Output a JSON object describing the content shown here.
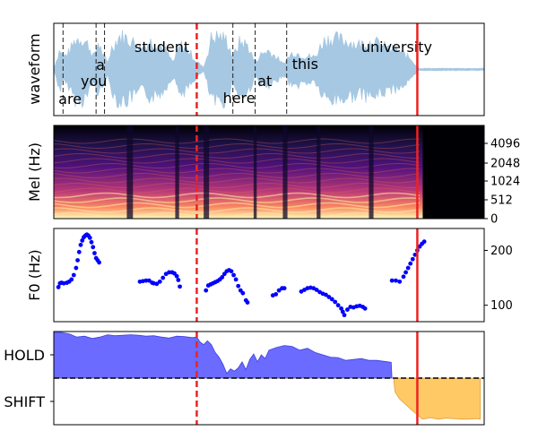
{
  "chart_data": [
    {
      "type": "area",
      "panel": "waveform",
      "ylabel": "waveform",
      "words": [
        {
          "text": "are",
          "t": 0.06
        },
        {
          "text": "you",
          "t": 0.35
        },
        {
          "text": "a",
          "t": 0.55
        },
        {
          "text": "student",
          "t": 1.05
        },
        {
          "text": "here",
          "t": 2.2
        },
        {
          "text": "at",
          "t": 2.65
        },
        {
          "text": "this",
          "t": 3.1
        },
        {
          "text": "university",
          "t": 4.0
        }
      ],
      "word_boundaries": [
        0.12,
        0.55,
        0.66,
        2.33,
        2.62,
        3.03
      ],
      "envelope": [
        [
          0.0,
          0.05
        ],
        [
          0.04,
          0.3
        ],
        [
          0.08,
          0.6
        ],
        [
          0.12,
          0.35
        ],
        [
          0.2,
          0.5
        ],
        [
          0.28,
          0.85
        ],
        [
          0.36,
          0.9
        ],
        [
          0.45,
          0.7
        ],
        [
          0.52,
          0.35
        ],
        [
          0.58,
          0.8
        ],
        [
          0.64,
          0.4
        ],
        [
          0.7,
          0.2
        ],
        [
          0.75,
          0.6
        ],
        [
          0.85,
          0.95
        ],
        [
          0.95,
          0.9
        ],
        [
          1.05,
          0.75
        ],
        [
          1.15,
          0.6
        ],
        [
          1.25,
          0.8
        ],
        [
          1.35,
          0.75
        ],
        [
          1.45,
          0.55
        ],
        [
          1.55,
          0.2
        ],
        [
          1.65,
          0.7
        ],
        [
          1.75,
          0.55
        ],
        [
          1.85,
          0.25
        ],
        [
          1.95,
          0.05
        ],
        [
          2.0,
          0.45
        ],
        [
          2.05,
          0.9
        ],
        [
          2.15,
          0.95
        ],
        [
          2.25,
          0.85
        ],
        [
          2.33,
          0.35
        ],
        [
          2.42,
          0.8
        ],
        [
          2.52,
          0.7
        ],
        [
          2.62,
          0.2
        ],
        [
          2.68,
          0.4
        ],
        [
          2.78,
          0.55
        ],
        [
          2.9,
          0.35
        ],
        [
          2.98,
          0.15
        ],
        [
          3.03,
          0.3
        ],
        [
          3.12,
          0.5
        ],
        [
          3.25,
          0.4
        ],
        [
          3.4,
          0.35
        ],
        [
          3.5,
          0.8
        ],
        [
          3.6,
          0.9
        ],
        [
          3.72,
          0.85
        ],
        [
          3.85,
          0.8
        ],
        [
          3.95,
          0.7
        ],
        [
          4.05,
          0.75
        ],
        [
          4.15,
          0.8
        ],
        [
          4.25,
          0.7
        ],
        [
          4.35,
          0.6
        ],
        [
          4.45,
          0.55
        ],
        [
          4.55,
          0.45
        ],
        [
          4.65,
          0.3
        ],
        [
          4.72,
          0.1
        ],
        [
          4.75,
          0.03
        ],
        [
          5.6,
          0.03
        ]
      ],
      "xlim": [
        0,
        5.6
      ],
      "markers": {
        "dashed_red_t": 1.86,
        "solid_red_t": 4.73
      },
      "color": "#a6c8e2"
    },
    {
      "type": "heatmap",
      "panel": "mel_spectrogram",
      "ylabel": "Mel (Hz)",
      "yticks": [
        "0",
        "512",
        "1024",
        "2048",
        "4096"
      ],
      "data_end_t": 4.8,
      "xlim": [
        0,
        5.6
      ],
      "colormap": "magma",
      "markers": {
        "dashed_red_t": 1.86,
        "solid_red_t": 4.73
      }
    },
    {
      "type": "scatter",
      "panel": "f0",
      "ylabel": "F0 (Hz)",
      "yticks": [
        100,
        200
      ],
      "ylim": [
        70,
        240
      ],
      "xlim": [
        0,
        5.6
      ],
      "color": "#0000ff",
      "points": [
        [
          0.06,
          133
        ],
        [
          0.08,
          140
        ],
        [
          0.1,
          141
        ],
        [
          0.13,
          140
        ],
        [
          0.17,
          141
        ],
        [
          0.2,
          143
        ],
        [
          0.23,
          147
        ],
        [
          0.26,
          155
        ],
        [
          0.29,
          168
        ],
        [
          0.31,
          182
        ],
        [
          0.33,
          197
        ],
        [
          0.35,
          210
        ],
        [
          0.37,
          218
        ],
        [
          0.39,
          224
        ],
        [
          0.41,
          227
        ],
        [
          0.43,
          229
        ],
        [
          0.45,
          227
        ],
        [
          0.47,
          223
        ],
        [
          0.49,
          215
        ],
        [
          0.51,
          206
        ],
        [
          0.53,
          195
        ],
        [
          0.55,
          186
        ],
        [
          0.57,
          182
        ],
        [
          0.59,
          178
        ],
        [
          1.12,
          143
        ],
        [
          1.16,
          144
        ],
        [
          1.2,
          145
        ],
        [
          1.24,
          145
        ],
        [
          1.28,
          141
        ],
        [
          1.3,
          140
        ],
        [
          1.34,
          139
        ],
        [
          1.38,
          143
        ],
        [
          1.42,
          150
        ],
        [
          1.46,
          157
        ],
        [
          1.5,
          160
        ],
        [
          1.54,
          160
        ],
        [
          1.57,
          158
        ],
        [
          1.6,
          153
        ],
        [
          1.62,
          146
        ],
        [
          1.64,
          134
        ],
        [
          1.98,
          127
        ],
        [
          2.01,
          136
        ],
        [
          2.04,
          138
        ],
        [
          2.07,
          140
        ],
        [
          2.1,
          142
        ],
        [
          2.13,
          144
        ],
        [
          2.16,
          147
        ],
        [
          2.19,
          151
        ],
        [
          2.22,
          157
        ],
        [
          2.25,
          162
        ],
        [
          2.28,
          164
        ],
        [
          2.31,
          162
        ],
        [
          2.34,
          155
        ],
        [
          2.37,
          147
        ],
        [
          2.4,
          135
        ],
        [
          2.43,
          127
        ],
        [
          2.46,
          122
        ],
        [
          2.5,
          109
        ],
        [
          2.52,
          105
        ],
        [
          2.85,
          118
        ],
        [
          2.89,
          120
        ],
        [
          2.93,
          127
        ],
        [
          2.97,
          131
        ],
        [
          3.0,
          131
        ],
        [
          3.22,
          125
        ],
        [
          3.26,
          128
        ],
        [
          3.3,
          131
        ],
        [
          3.34,
          132
        ],
        [
          3.38,
          131
        ],
        [
          3.42,
          128
        ],
        [
          3.46,
          124
        ],
        [
          3.5,
          121
        ],
        [
          3.54,
          119
        ],
        [
          3.58,
          115
        ],
        [
          3.62,
          111
        ],
        [
          3.66,
          106
        ],
        [
          3.7,
          100
        ],
        [
          3.74,
          94
        ],
        [
          3.76,
          88
        ],
        [
          3.78,
          82
        ],
        [
          3.82,
          92
        ],
        [
          3.86,
          97
        ],
        [
          3.9,
          96
        ],
        [
          3.94,
          98
        ],
        [
          3.98,
          99
        ],
        [
          4.02,
          97
        ],
        [
          4.05,
          94
        ],
        [
          4.4,
          145
        ],
        [
          4.45,
          145
        ],
        [
          4.5,
          143
        ],
        [
          4.55,
          152
        ],
        [
          4.58,
          160
        ],
        [
          4.61,
          168
        ],
        [
          4.64,
          176
        ],
        [
          4.67,
          184
        ],
        [
          4.7,
          192
        ],
        [
          4.73,
          200
        ],
        [
          4.76,
          207
        ],
        [
          4.79,
          212
        ],
        [
          4.82,
          216
        ]
      ],
      "markers": {
        "dashed_red_t": 1.86,
        "solid_red_t": 4.73
      }
    },
    {
      "type": "area",
      "panel": "turn_prediction",
      "yticks": [
        "HOLD",
        "SHIFT"
      ],
      "ylim": [
        -1,
        1
      ],
      "xlim": [
        0,
        5.6
      ],
      "series": [
        {
          "color": "#6b6bff",
          "values": [
            [
              0.0,
              0.98
            ],
            [
              0.1,
              0.98
            ],
            [
              0.2,
              0.95
            ],
            [
              0.3,
              0.88
            ],
            [
              0.4,
              0.9
            ],
            [
              0.5,
              0.85
            ],
            [
              0.6,
              0.88
            ],
            [
              0.7,
              0.93
            ],
            [
              0.8,
              0.91
            ],
            [
              0.9,
              0.92
            ],
            [
              1.0,
              0.93
            ],
            [
              1.1,
              0.92
            ],
            [
              1.2,
              0.9
            ],
            [
              1.3,
              0.91
            ],
            [
              1.4,
              0.88
            ],
            [
              1.5,
              0.86
            ],
            [
              1.6,
              0.9
            ],
            [
              1.7,
              0.89
            ],
            [
              1.8,
              0.87
            ],
            [
              1.86,
              0.88
            ],
            [
              1.9,
              0.78
            ],
            [
              1.95,
              0.72
            ],
            [
              2.0,
              0.8
            ],
            [
              2.05,
              0.72
            ],
            [
              2.1,
              0.55
            ],
            [
              2.15,
              0.45
            ],
            [
              2.2,
              0.3
            ],
            [
              2.25,
              0.1
            ],
            [
              2.3,
              0.2
            ],
            [
              2.35,
              0.15
            ],
            [
              2.4,
              0.22
            ],
            [
              2.45,
              0.35
            ],
            [
              2.5,
              0.18
            ],
            [
              2.55,
              0.4
            ],
            [
              2.6,
              0.52
            ],
            [
              2.65,
              0.35
            ],
            [
              2.7,
              0.5
            ],
            [
              2.75,
              0.42
            ],
            [
              2.8,
              0.6
            ],
            [
              2.9,
              0.66
            ],
            [
              3.0,
              0.7
            ],
            [
              3.1,
              0.68
            ],
            [
              3.2,
              0.6
            ],
            [
              3.3,
              0.64
            ],
            [
              3.4,
              0.55
            ],
            [
              3.5,
              0.5
            ],
            [
              3.6,
              0.45
            ],
            [
              3.7,
              0.44
            ],
            [
              3.8,
              0.38
            ],
            [
              3.9,
              0.4
            ],
            [
              4.0,
              0.42
            ],
            [
              4.1,
              0.38
            ],
            [
              4.2,
              0.38
            ],
            [
              4.3,
              0.36
            ],
            [
              4.39,
              0.34
            ],
            [
              4.4,
              0.0
            ]
          ]
        },
        {
          "color": "#ffc965",
          "values": [
            [
              4.42,
              0.0
            ],
            [
              4.44,
              -0.3
            ],
            [
              4.5,
              -0.45
            ],
            [
              4.6,
              -0.6
            ],
            [
              4.7,
              -0.75
            ],
            [
              4.8,
              -0.88
            ],
            [
              4.9,
              -0.85
            ],
            [
              5.0,
              -0.88
            ],
            [
              5.1,
              -0.86
            ],
            [
              5.2,
              -0.87
            ],
            [
              5.3,
              -0.88
            ],
            [
              5.4,
              -0.88
            ],
            [
              5.5,
              -0.87
            ],
            [
              5.55,
              -0.88
            ]
          ]
        }
      ],
      "threshold": 0.0,
      "markers": {
        "dashed_red_t": 1.86,
        "solid_red_t": 4.73
      }
    }
  ]
}
